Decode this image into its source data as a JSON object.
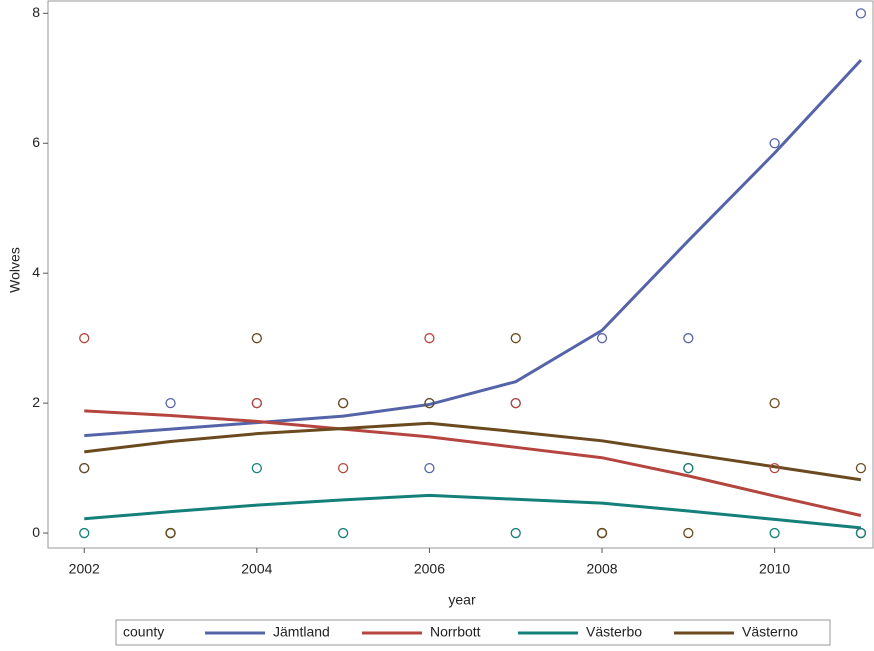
{
  "chart_data": {
    "type": "scatter",
    "x_label": "year",
    "y_label": "Wolves",
    "legend_title": "county",
    "x": [
      2002,
      2003,
      2004,
      2005,
      2006,
      2007,
      2008,
      2009,
      2010,
      2011
    ],
    "series": [
      {
        "name": "Jämtland",
        "color": "#5564a8",
        "values": [
          1,
          2,
          2,
          2,
          1,
          2,
          3,
          3,
          6,
          8
        ],
        "fit": [
          1.5,
          1.6,
          1.7,
          1.8,
          1.98,
          2.33,
          3.12,
          4.5,
          5.85,
          7.28
        ]
      },
      {
        "name": "Norrbott",
        "color": "#b5463f",
        "values": [
          3,
          0,
          2,
          1,
          3,
          2,
          0,
          1,
          1,
          0
        ],
        "fit": [
          1.88,
          1.81,
          1.72,
          1.6,
          1.48,
          1.32,
          1.16,
          0.88,
          0.57,
          0.27
        ]
      },
      {
        "name": "Västerbo",
        "color": "#14807a",
        "values": [
          0,
          0,
          1,
          0,
          2,
          0,
          0,
          1,
          0,
          0
        ],
        "fit": [
          0.22,
          0.33,
          0.43,
          0.51,
          0.58,
          0.52,
          0.46,
          0.34,
          0.21,
          0.08
        ]
      },
      {
        "name": "Västerno",
        "color": "#6a4a1e",
        "values": [
          1,
          0,
          3,
          2,
          2,
          3,
          0,
          0,
          2,
          1
        ],
        "fit": [
          1.25,
          1.41,
          1.53,
          1.61,
          1.69,
          1.56,
          1.42,
          1.22,
          1.02,
          0.82
        ]
      }
    ],
    "xlim": [
      2001.58,
      2011.14
    ],
    "ylim": [
      -0.23,
      8.19
    ],
    "xticks": [
      2002,
      2004,
      2006,
      2008,
      2010
    ],
    "yticks": [
      0,
      2,
      4,
      6,
      8
    ]
  }
}
